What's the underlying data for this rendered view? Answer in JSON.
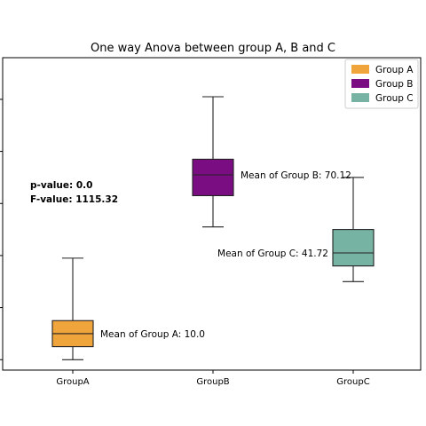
{
  "chart_data": {
    "type": "box",
    "title": "One way Anova between group A, B and C",
    "xlabel": "",
    "ylabel": "",
    "ylim": [
      -4,
      116
    ],
    "y_ticks_visible": false,
    "grid": false,
    "legend_position": "top-right",
    "categories": [
      "GroupA",
      "GroupB",
      "GroupC"
    ],
    "series": [
      {
        "name": "Group A",
        "color": "#f0a43c",
        "whisker_low": 0,
        "q1": 5,
        "median": 10,
        "q3": 15,
        "whisker_high": 39,
        "mean_label": "Mean of Group A: 10.0"
      },
      {
        "name": "Group B",
        "color": "#7b0d82",
        "whisker_low": 51,
        "q1": 63,
        "median": 71,
        "q3": 77,
        "whisker_high": 101,
        "mean_label": "Mean of Group B: 70.12"
      },
      {
        "name": "Group C",
        "color": "#76b3a3",
        "whisker_low": 30,
        "q1": 36,
        "median": 41,
        "q3": 50,
        "whisker_high": 70,
        "mean_label": "Mean of Group C: 41.72"
      }
    ],
    "annotations": {
      "p_value": "p-value: 0.0",
      "f_value": "F-value: 1115.32"
    }
  }
}
